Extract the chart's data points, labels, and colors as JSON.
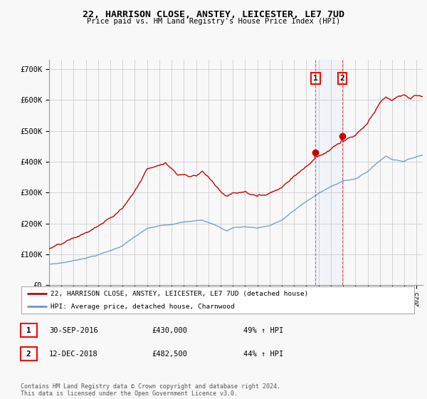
{
  "title": "22, HARRISON CLOSE, ANSTEY, LEICESTER, LE7 7UD",
  "subtitle": "Price paid vs. HM Land Registry's House Price Index (HPI)",
  "ylim": [
    0,
    730000
  ],
  "xlim_start": 1995.0,
  "xlim_end": 2025.5,
  "house_color": "#cc0000",
  "hpi_color": "#6699cc",
  "sale1_x": 2016.75,
  "sale1_y": 430000,
  "sale2_x": 2018.92,
  "sale2_y": 482500,
  "legend_house": "22, HARRISON CLOSE, ANSTEY, LEICESTER, LE7 7UD (detached house)",
  "legend_hpi": "HPI: Average price, detached house, Charnwood",
  "sale1_date": "30-SEP-2016",
  "sale1_price": "£430,000",
  "sale1_hpi": "49% ↑ HPI",
  "sale2_date": "12-DEC-2018",
  "sale2_price": "£482,500",
  "sale2_hpi": "44% ↑ HPI",
  "footnote": "Contains HM Land Registry data © Crown copyright and database right 2024.\nThis data is licensed under the Open Government Licence v3.0.",
  "background_color": "#f8f8f8",
  "grid_color": "#cccccc"
}
